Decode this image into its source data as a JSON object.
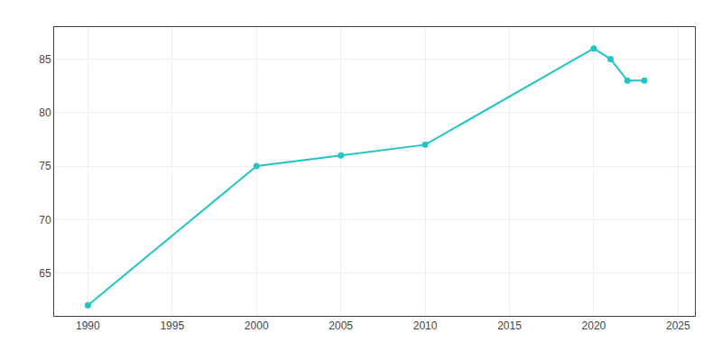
{
  "chart_data": {
    "type": "line",
    "x": [
      1990,
      2000,
      2005,
      2010,
      2020,
      2021,
      2022,
      2023
    ],
    "values": [
      62,
      75,
      76,
      77,
      86,
      85,
      83,
      83
    ],
    "color": "#22c4c4",
    "marker": "circle",
    "xlim": [
      1988,
      2026
    ],
    "ylim": [
      61,
      88
    ],
    "xticks": [
      1990,
      1995,
      2000,
      2005,
      2010,
      2015,
      2020,
      2025
    ],
    "yticks": [
      65,
      70,
      75,
      80,
      85
    ],
    "grid": true
  }
}
